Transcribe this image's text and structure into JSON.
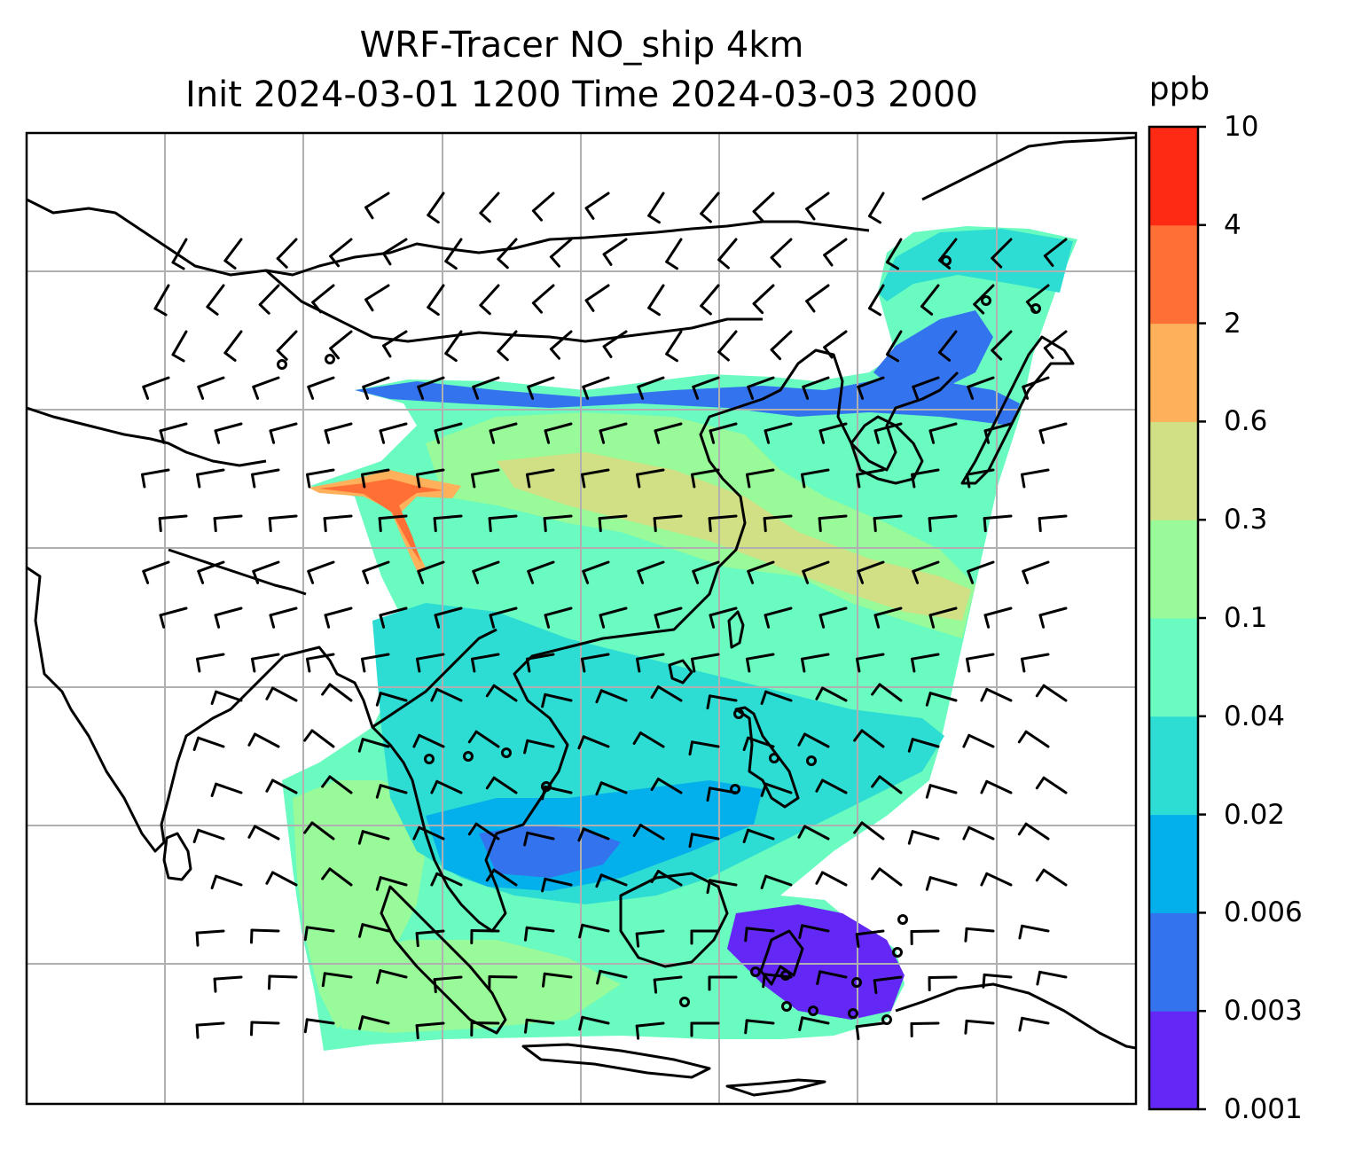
{
  "title": {
    "line1": "WRF-Tracer NO_ship 4km",
    "line2": "Init 2024-03-01 1200 Time 2024-03-03 2000"
  },
  "colorbar": {
    "unit": "ppb",
    "levels": [
      "0.001",
      "0.003",
      "0.006",
      "0.02",
      "0.04",
      "0.1",
      "0.3",
      "0.6",
      "2",
      "4",
      "10"
    ],
    "colors": [
      "#6327f6",
      "#3473ee",
      "#04b0eb",
      "#2ddcd2",
      "#69fbc0",
      "#98fa98",
      "#d1df85",
      "#feb05a",
      "#ff6f36",
      "#ff2a14"
    ]
  },
  "map": {
    "field": "NO_ship tracer concentration",
    "overlays": [
      "coastlines",
      "country-borders",
      "gridlines",
      "wind-barbs"
    ],
    "colors": {
      "coastline": "#000000",
      "gridline": "#b0b0b0",
      "barb": "#000000",
      "frame": "#000000"
    }
  }
}
